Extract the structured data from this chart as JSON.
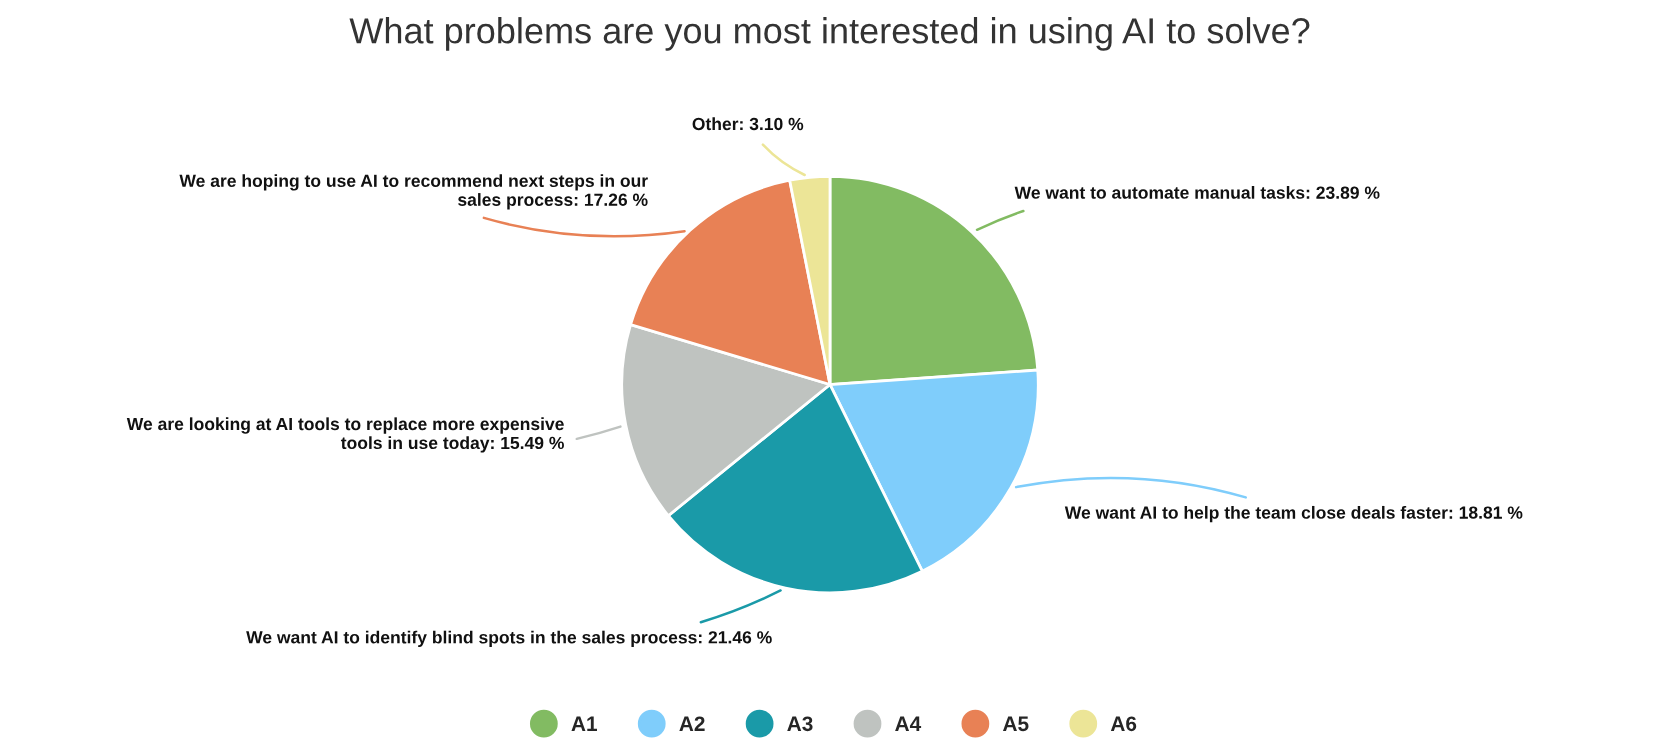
{
  "chart_data": {
    "type": "pie",
    "title": "What problems are you most interested in using AI to solve?",
    "categories": [
      "A1",
      "A2",
      "A3",
      "A4",
      "A5",
      "A6"
    ],
    "values": [
      23.89,
      18.81,
      21.46,
      15.49,
      17.26,
      3.1
    ],
    "colors": [
      "#82bb62",
      "#7fcdfb",
      "#1a9aa8",
      "#bfc3c0",
      "#e88155",
      "#ece597"
    ],
    "value_labels": [
      "We want to automate manual tasks: 23.89 %",
      "We want AI to help the team close deals faster: 18.81 %",
      "We want AI to identify blind spots in the sales process: 21.46 %",
      "We are looking at AI tools to replace more expensive\ntools in use today: 15.49 %",
      "We are hoping to use AI to recommend next steps in our\nsales process: 17.26 %",
      "Other: 3.10 %"
    ],
    "legend": "bottom"
  }
}
